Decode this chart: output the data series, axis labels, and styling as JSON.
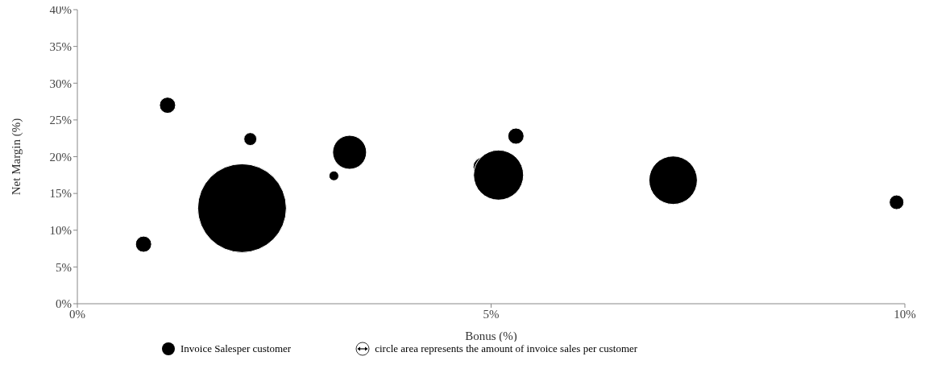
{
  "chart_data": {
    "type": "bubble",
    "xlabel": "Bonus (%)",
    "ylabel": "Net Margin (%)",
    "xlim": [
      0,
      10
    ],
    "xticks": [
      {
        "value": 0,
        "label": "0%"
      },
      {
        "value": 5,
        "label": "5%"
      },
      {
        "value": 10,
        "label": "10%"
      }
    ],
    "ylim": [
      0,
      40
    ],
    "yticks": [
      {
        "value": 0,
        "label": "0%"
      },
      {
        "value": 5,
        "label": "5%"
      },
      {
        "value": 10,
        "label": "10%"
      },
      {
        "value": 15,
        "label": "15%"
      },
      {
        "value": 20,
        "label": "20%"
      },
      {
        "value": 25,
        "label": "25%"
      },
      {
        "value": 30,
        "label": "30%"
      },
      {
        "value": 35,
        "label": "35%"
      },
      {
        "value": 40,
        "label": "40%"
      }
    ],
    "series": [
      {
        "name": "Invoice Salesper customer",
        "color": "#000000",
        "x": [
          0.8,
          1.09,
          1.99,
          2.09,
          3.1,
          3.29,
          4.9,
          5.09,
          5.3,
          7.2,
          9.9
        ],
        "values": [
          8.1,
          27.0,
          13.0,
          22.4,
          17.4,
          20.6,
          18.6,
          17.5,
          22.8,
          16.8,
          13.8
        ],
        "sizes": [
          0.033,
          0.033,
          1,
          0.021,
          0.012,
          0.146,
          0.048,
          0.318,
          0.033,
          0.297,
          0.027
        ]
      }
    ],
    "legend": "bottom",
    "annotations": [
      "circle area represents the amount of invoice sales per customer"
    ]
  }
}
